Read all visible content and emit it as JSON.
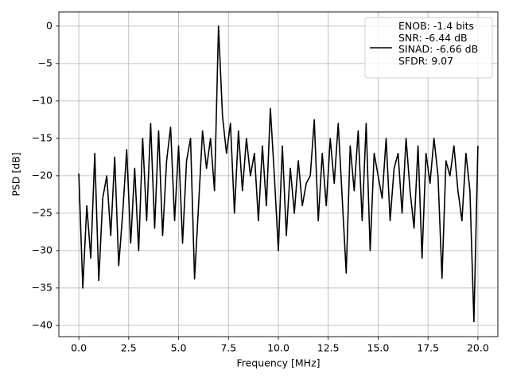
{
  "chart_data": {
    "type": "line",
    "xlabel": "Frequency [MHz]",
    "ylabel": "PSD [dB]",
    "x": [
      0,
      0.2,
      0.4,
      0.6,
      0.8,
      1.0,
      1.2,
      1.4,
      1.6,
      1.8,
      2.0,
      2.2,
      2.4,
      2.6,
      2.8,
      3.0,
      3.2,
      3.4,
      3.6,
      3.8,
      4.0,
      4.2,
      4.4,
      4.6,
      4.8,
      5.0,
      5.2,
      5.4,
      5.6,
      5.8,
      6.0,
      6.2,
      6.4,
      6.6,
      6.8,
      7.0,
      7.2,
      7.4,
      7.6,
      7.8,
      8.0,
      8.2,
      8.4,
      8.6,
      8.8,
      9.0,
      9.2,
      9.4,
      9.6,
      9.8,
      10.0,
      10.2,
      10.4,
      10.6,
      10.8,
      11.0,
      11.2,
      11.4,
      11.6,
      11.8,
      12.0,
      12.2,
      12.4,
      12.6,
      12.8,
      13.0,
      13.2,
      13.4,
      13.6,
      13.8,
      14.0,
      14.2,
      14.4,
      14.6,
      14.8,
      15.0,
      15.2,
      15.4,
      15.6,
      15.8,
      16.0,
      16.2,
      16.4,
      16.6,
      16.8,
      17.0,
      17.2,
      17.4,
      17.6,
      17.8,
      18.0,
      18.2,
      18.4,
      18.6,
      18.8,
      19.0,
      19.2,
      19.4,
      19.6,
      19.8,
      20.0
    ],
    "series": [
      {
        "name": "ENOB: -1.4 bits\nSNR: -6.44 dB\nSINAD: -6.66 dB\nSFDR: 9.07",
        "color": "#000000",
        "values": [
          -19.7,
          -35,
          -24,
          -31,
          -17,
          -34,
          -23,
          -20,
          -28,
          -17.5,
          -32,
          -25,
          -16.5,
          -29,
          -19,
          -30,
          -15,
          -26,
          -13,
          -27,
          -14,
          -28,
          -18,
          -13.5,
          -26,
          -16,
          -29,
          -18,
          -15,
          -33.8,
          -24,
          -14,
          -19,
          -15,
          -22,
          0,
          -12,
          -17,
          -13,
          -25,
          -14,
          -22,
          -15,
          -20,
          -17,
          -26,
          -16,
          -24,
          -11,
          -20,
          -30,
          -16,
          -28,
          -19,
          -25,
          -18,
          -24,
          -21,
          -20,
          -12.5,
          -26,
          -17,
          -24,
          -15,
          -21,
          -13,
          -23,
          -33,
          -16,
          -22,
          -14,
          -26,
          -13,
          -30,
          -17,
          -20,
          -23,
          -15,
          -26,
          -19,
          -17,
          -25,
          -15,
          -22,
          -27,
          -16,
          -31,
          -17,
          -21,
          -15,
          -20,
          -33.7,
          -18,
          -20,
          -16,
          -22,
          -26,
          -17,
          -22,
          -39.5,
          -16
        ]
      }
    ],
    "xlim": [
      -1.0,
      21.0
    ],
    "ylim": [
      -41.5,
      1.9
    ],
    "xticks": [
      {
        "value": 0,
        "label": "0.0"
      },
      2.5,
      {
        "value": 5,
        "label": "5.0"
      },
      7.5,
      {
        "value": 10,
        "label": "10.0"
      },
      12.5,
      {
        "value": 15,
        "label": "15.0"
      },
      17.5,
      {
        "value": 20,
        "label": "20.0"
      }
    ],
    "yticks": [
      0,
      {
        "value": -5,
        "label": "−5"
      },
      {
        "value": -10,
        "label": "−10"
      },
      {
        "value": -15,
        "label": "−15"
      },
      {
        "value": -20,
        "label": "−20"
      },
      {
        "value": -25,
        "label": "−25"
      },
      {
        "value": -30,
        "label": "−30"
      },
      {
        "value": -35,
        "label": "−35"
      },
      {
        "value": -40,
        "label": "−40"
      }
    ],
    "grid": true,
    "legend": "upper right"
  }
}
